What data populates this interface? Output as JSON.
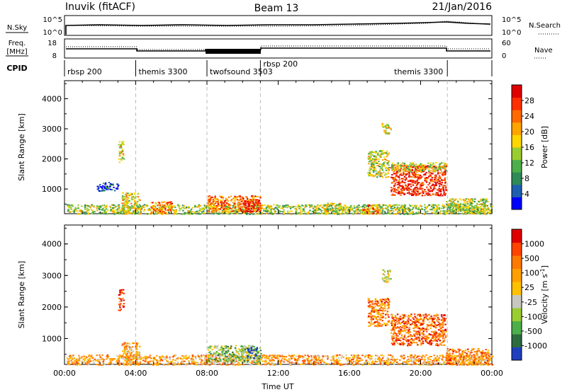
{
  "header": {
    "title": "Inuvik (fitACF)",
    "beam": "Beam 13",
    "date": "21/Jan/2016"
  },
  "status_panels": {
    "nsky_label": "N.Sky",
    "nsky_ticks": [
      "10^5",
      "10^0"
    ],
    "nsearch_label": "N.Search",
    "nsearch_ticks": [
      "10^5",
      "10^0"
    ],
    "freq_label": "Freq.",
    "freq_unit": "[MHz]",
    "freq_ticks": [
      "18",
      "8"
    ],
    "nave_label": "Nave",
    "nave_ticks": [
      "60",
      "0"
    ],
    "cpid_label": "CPID"
  },
  "cpid_segments": [
    {
      "name": "rbsp 200",
      "start": 0.0,
      "end": 4.0
    },
    {
      "name": "themis 3300",
      "start": 4.0,
      "end": 8.0
    },
    {
      "name": "twofsound 3503",
      "start": 8.0,
      "end": 11.0
    },
    {
      "name": "rbsp 200",
      "start": 11.0,
      "end": 21.5
    },
    {
      "name": "themis 3300",
      "start": 21.5,
      "end": 24.0
    }
  ],
  "chart_data": [
    {
      "type": "heatmap",
      "quantity": "power",
      "ylabel": "Slant Range [km]",
      "xlabel": "",
      "xlim": [
        0,
        24
      ],
      "ylim": [
        180,
        4600
      ],
      "yticks": [
        "1000",
        "2000",
        "3000",
        "4000"
      ],
      "xticks": [
        "00:00",
        "04:00",
        "08:00",
        "12:00",
        "16:00",
        "20:00",
        "00:00"
      ],
      "colorbar": {
        "label": "Power [dB]",
        "ticks": [
          "28",
          "24",
          "20",
          "16",
          "12",
          "8",
          "4"
        ],
        "colors": [
          "#0000ff",
          "#1f5fb0",
          "#2e8b57",
          "#4daf4a",
          "#9acd32",
          "#ffd700",
          "#ffa500",
          "#ff6a00",
          "#ff3000",
          "#e00000"
        ]
      },
      "regions": [
        {
          "t0": 0.1,
          "t1": 24.0,
          "r0": 180,
          "r1": 500,
          "level": 0.45
        },
        {
          "t0": 3.2,
          "t1": 4.2,
          "r0": 180,
          "r1": 900,
          "level": 0.55
        },
        {
          "t0": 4.8,
          "t1": 6.0,
          "r0": 180,
          "r1": 600,
          "level": 0.7
        },
        {
          "t0": 8.0,
          "t1": 11.0,
          "r0": 250,
          "r1": 800,
          "level": 0.72
        },
        {
          "t0": 9.8,
          "t1": 10.9,
          "r0": 250,
          "r1": 700,
          "level": 0.92
        },
        {
          "t0": 14.5,
          "t1": 15.5,
          "r0": 180,
          "r1": 550,
          "level": 0.5
        },
        {
          "t0": 16.6,
          "t1": 17.6,
          "r0": 180,
          "r1": 500,
          "level": 0.75
        },
        {
          "t0": 17.0,
          "t1": 18.2,
          "r0": 1400,
          "r1": 2300,
          "level": 0.5
        },
        {
          "t0": 17.8,
          "t1": 18.3,
          "r0": 2800,
          "r1": 3200,
          "level": 0.55
        },
        {
          "t0": 18.3,
          "t1": 21.4,
          "r0": 800,
          "r1": 1800,
          "level": 0.88
        },
        {
          "t0": 18.3,
          "t1": 21.4,
          "r0": 1600,
          "r1": 1900,
          "level": 0.5
        },
        {
          "t0": 21.4,
          "t1": 23.8,
          "r0": 180,
          "r1": 700,
          "level": 0.45
        },
        {
          "t0": 1.8,
          "t1": 3.0,
          "r0": 950,
          "r1": 1250,
          "level": 0.15
        },
        {
          "t0": 3.0,
          "t1": 3.3,
          "r0": 1900,
          "r1": 2600,
          "level": 0.55
        }
      ]
    },
    {
      "type": "heatmap",
      "quantity": "velocity",
      "ylabel": "Slant Range [km]",
      "xlabel": "Time UT",
      "xlim": [
        0,
        24
      ],
      "ylim": [
        180,
        4600
      ],
      "yticks": [
        "1000",
        "2000",
        "3000",
        "4000"
      ],
      "xticks": [
        "00:00",
        "04:00",
        "08:00",
        "12:00",
        "16:00",
        "20:00",
        "00:00"
      ],
      "colorbar": {
        "label": "Velocity",
        "unit_label": "[m s",
        "unit_sup": "-1",
        "unit_close": "]",
        "ticks": [
          "1000",
          "500",
          "100",
          "25",
          "-25",
          "-100",
          "-500",
          "-1000"
        ],
        "colors": [
          "#1f3fbf",
          "#2e6b3f",
          "#4daf4a",
          "#9acd32",
          "#c8c8c0",
          "#ffc000",
          "#ffa000",
          "#ff7a00",
          "#ff4400",
          "#e00000"
        ]
      },
      "regions": [
        {
          "t0": 0.1,
          "t1": 24.0,
          "r0": 180,
          "r1": 500,
          "level": 0.65
        },
        {
          "t0": 3.2,
          "t1": 4.2,
          "r0": 180,
          "r1": 900,
          "level": 0.6
        },
        {
          "t0": 8.0,
          "t1": 11.0,
          "r0": 250,
          "r1": 800,
          "level": 0.35
        },
        {
          "t0": 10.2,
          "t1": 10.8,
          "r0": 400,
          "r1": 750,
          "level": 0.05
        },
        {
          "t0": 17.0,
          "t1": 18.2,
          "r0": 1400,
          "r1": 2300,
          "level": 0.72
        },
        {
          "t0": 17.8,
          "t1": 18.3,
          "r0": 2800,
          "r1": 3200,
          "level": 0.45
        },
        {
          "t0": 18.3,
          "t1": 21.4,
          "r0": 800,
          "r1": 1800,
          "level": 0.8
        },
        {
          "t0": 21.4,
          "t1": 23.8,
          "r0": 180,
          "r1": 700,
          "level": 0.7
        },
        {
          "t0": 3.0,
          "t1": 3.3,
          "r0": 1900,
          "r1": 2600,
          "level": 0.9
        }
      ]
    }
  ]
}
